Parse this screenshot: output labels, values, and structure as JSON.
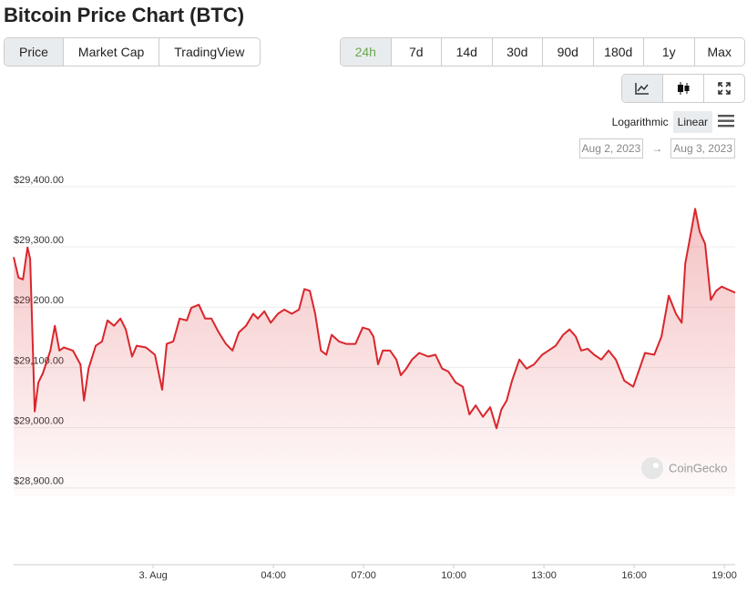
{
  "tabs": [
    "Price",
    "Market Cap",
    "TradingView"
  ],
  "ranges": [
    "24h",
    "7d",
    "14d",
    "30d",
    "90d",
    "180d",
    "1y",
    "Max"
  ],
  "scale_options": [
    "Logarithmic",
    "Linear"
  ],
  "date_range": {
    "from": "Aug 2, 2023",
    "separator": "→",
    "to": "Aug 3, 2023"
  },
  "watermark": "CoinGecko",
  "chart_data": {
    "type": "line",
    "title": "Bitcoin Price Chart (BTC)",
    "color": "#d9262c",
    "grid": true,
    "x": [
      -4.64,
      -4.48,
      -4.33,
      -4.18,
      -4.09,
      -4.03,
      -3.94,
      -3.82,
      -3.67,
      -3.42,
      -3.27,
      -3.12,
      -2.97,
      -2.67,
      -2.42,
      -2.3,
      -2.15,
      -1.91,
      -1.7,
      -1.52,
      -1.3,
      -1.09,
      -0.91,
      -0.7,
      -0.55,
      -0.24,
      0.06,
      0.3,
      0.45,
      0.67,
      0.88,
      1.12,
      1.27,
      1.52,
      1.73,
      1.94,
      2.18,
      2.42,
      2.64,
      2.85,
      3.09,
      3.33,
      3.48,
      3.7,
      3.91,
      4.15,
      4.36,
      4.61,
      4.85,
      5.03,
      5.21,
      5.39,
      5.58,
      5.76,
      5.94,
      6.18,
      6.42,
      6.73,
      6.97,
      7.18,
      7.33,
      7.48,
      7.64,
      7.88,
      8.09,
      8.24,
      8.42,
      8.61,
      8.85,
      9.15,
      9.39,
      9.61,
      9.82,
      10.06,
      10.3,
      10.52,
      10.73,
      10.97,
      11.21,
      11.42,
      11.58,
      11.76,
      11.94,
      12.18,
      12.42,
      12.67,
      12.94,
      13.15,
      13.39,
      13.64,
      13.85,
      14.06,
      14.24,
      14.45,
      14.67,
      14.91,
      15.15,
      15.39,
      15.67,
      15.97,
      16.18,
      16.36,
      16.67,
      16.91,
      17.15,
      17.39,
      17.58,
      17.7,
      17.88,
      18.03,
      18.18,
      18.36,
      18.55,
      18.73,
      18.91,
      19.09,
      19.36
    ],
    "values": [
      29283,
      29249,
      29246,
      29299,
      29280,
      29181,
      29027,
      29075,
      29090,
      29128,
      29169,
      29128,
      29133,
      29128,
      29105,
      29045,
      29098,
      29136,
      29143,
      29178,
      29169,
      29181,
      29163,
      29118,
      29136,
      29133,
      29121,
      29063,
      29139,
      29143,
      29181,
      29178,
      29199,
      29204,
      29181,
      29181,
      29158,
      29139,
      29128,
      29158,
      29169,
      29189,
      29181,
      29193,
      29174,
      29189,
      29196,
      29189,
      29196,
      29230,
      29227,
      29189,
      29128,
      29121,
      29154,
      29143,
      29139,
      29139,
      29166,
      29163,
      29151,
      29105,
      29128,
      29128,
      29113,
      29087,
      29098,
      29113,
      29124,
      29118,
      29121,
      29098,
      29093,
      29075,
      29068,
      29022,
      29037,
      29018,
      29034,
      28999,
      29030,
      29045,
      29078,
      29113,
      29098,
      29105,
      29121,
      29128,
      29136,
      29154,
      29163,
      29151,
      29128,
      29131,
      29121,
      29113,
      29128,
      29113,
      29078,
      29068,
      29098,
      29124,
      29121,
      29151,
      29219,
      29189,
      29174,
      29272,
      29321,
      29363,
      29325,
      29305,
      29212,
      29227,
      29234,
      29230,
      29224
    ],
    "xlim": [
      -4.64,
      19.36
    ],
    "xticks": [
      {
        "value": 0,
        "label": "3. Aug"
      },
      {
        "value": 4,
        "label": "04:00"
      },
      {
        "value": 7,
        "label": "07:00"
      },
      {
        "value": 10,
        "label": "10:00"
      },
      {
        "value": 13,
        "label": "13:00"
      },
      {
        "value": 16,
        "label": "16:00"
      },
      {
        "value": 19,
        "label": "19:00"
      }
    ],
    "ylim": [
      28886,
      29430
    ],
    "yticks": [
      {
        "value": 28900,
        "label": "$28,900.00"
      },
      {
        "value": 29000,
        "label": "$29,000.00"
      },
      {
        "value": 29100,
        "label": "$29,100.00"
      },
      {
        "value": 29200,
        "label": "$29,200.00"
      },
      {
        "value": 29300,
        "label": "$29,300.00"
      },
      {
        "value": 29400,
        "label": "$29,400.00"
      }
    ]
  }
}
